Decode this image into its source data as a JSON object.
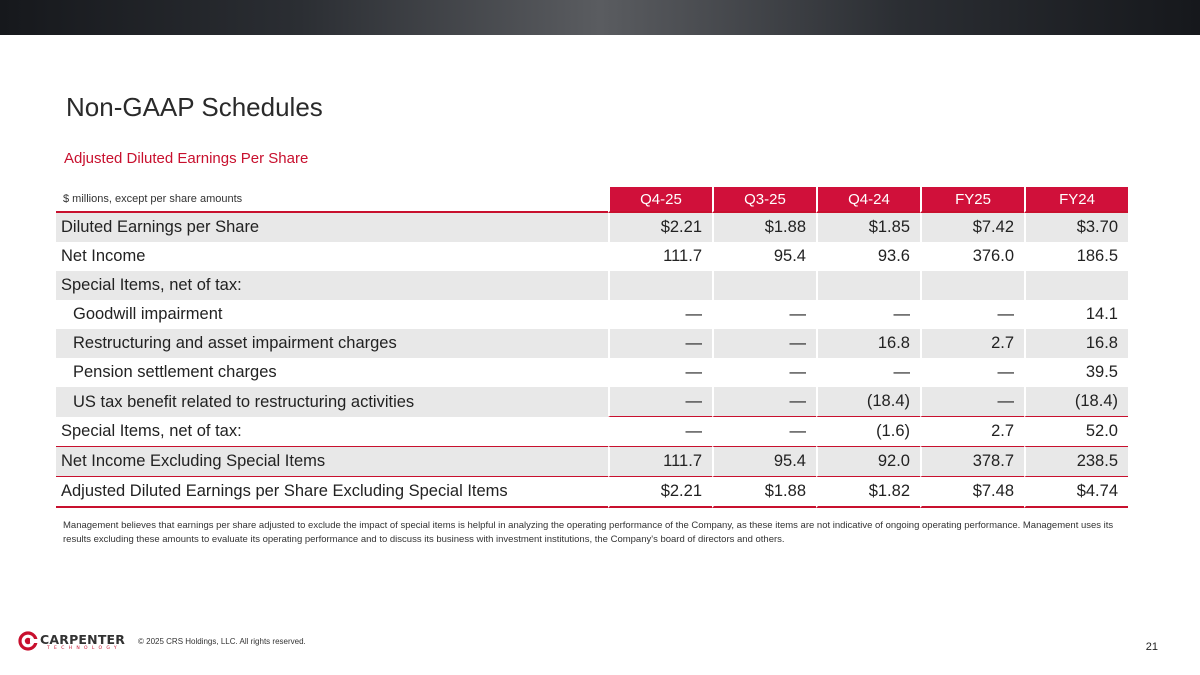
{
  "header": {
    "title": "Non-GAAP Schedules"
  },
  "section": {
    "subtitle": "Adjusted Diluted Earnings Per Share"
  },
  "table": {
    "units_label": "$ millions, except per share amounts",
    "columns": [
      "Q4-25",
      "Q3-25",
      "Q4-24",
      "FY25",
      "FY24"
    ],
    "rows": [
      {
        "label": "Diluted Earnings per Share",
        "values": [
          "$2.21",
          "$1.88",
          "$1.85",
          "$7.42",
          "$3.70"
        ]
      },
      {
        "label": "Net Income",
        "values": [
          "111.7",
          "95.4",
          "93.6",
          "376.0",
          "186.5"
        ]
      },
      {
        "label": "Special Items, net of tax:",
        "values": [
          "",
          "",
          "",
          "",
          ""
        ]
      },
      {
        "label": "Goodwill impairment",
        "values": [
          "—",
          "—",
          "—",
          "—",
          "14.1"
        ]
      },
      {
        "label": "Restructuring and asset impairment charges",
        "values": [
          "—",
          "—",
          "16.8",
          "2.7",
          "16.8"
        ]
      },
      {
        "label": "Pension settlement charges",
        "values": [
          "—",
          "—",
          "—",
          "—",
          "39.5"
        ]
      },
      {
        "label": "US tax benefit related to restructuring activities",
        "values": [
          "—",
          "—",
          "(18.4)",
          "—",
          "(18.4)"
        ]
      },
      {
        "label": "Special Items, net of tax:",
        "values": [
          "—",
          "—",
          "(1.6)",
          "2.7",
          "52.0"
        ]
      },
      {
        "label": "Net Income Excluding Special Items",
        "values": [
          "111.7",
          "95.4",
          "92.0",
          "378.7",
          "238.5"
        ]
      },
      {
        "label": "Adjusted Diluted Earnings per Share Excluding Special Items",
        "values": [
          "$2.21",
          "$1.88",
          "$1.82",
          "$7.48",
          "$4.74"
        ]
      }
    ]
  },
  "footnote": "Management believes that earnings per share adjusted to exclude the impact of special items is helpful in analyzing the operating performance of the Company, as these items are not indicative of ongoing operating performance. Management uses its results excluding these amounts to evaluate its operating performance and to discuss its business with investment institutions, the Company's board of directors and others.",
  "footer": {
    "logo_text": "CARPENTER",
    "logo_subtext": "TECHNOLOGY",
    "copyright": "© 2025 CRS Holdings, LLC. All rights reserved.",
    "page_number": "21"
  },
  "colors": {
    "accent": "#c8102e",
    "header_fill": "#d0103a",
    "row_shade": "#e8e8e8"
  }
}
